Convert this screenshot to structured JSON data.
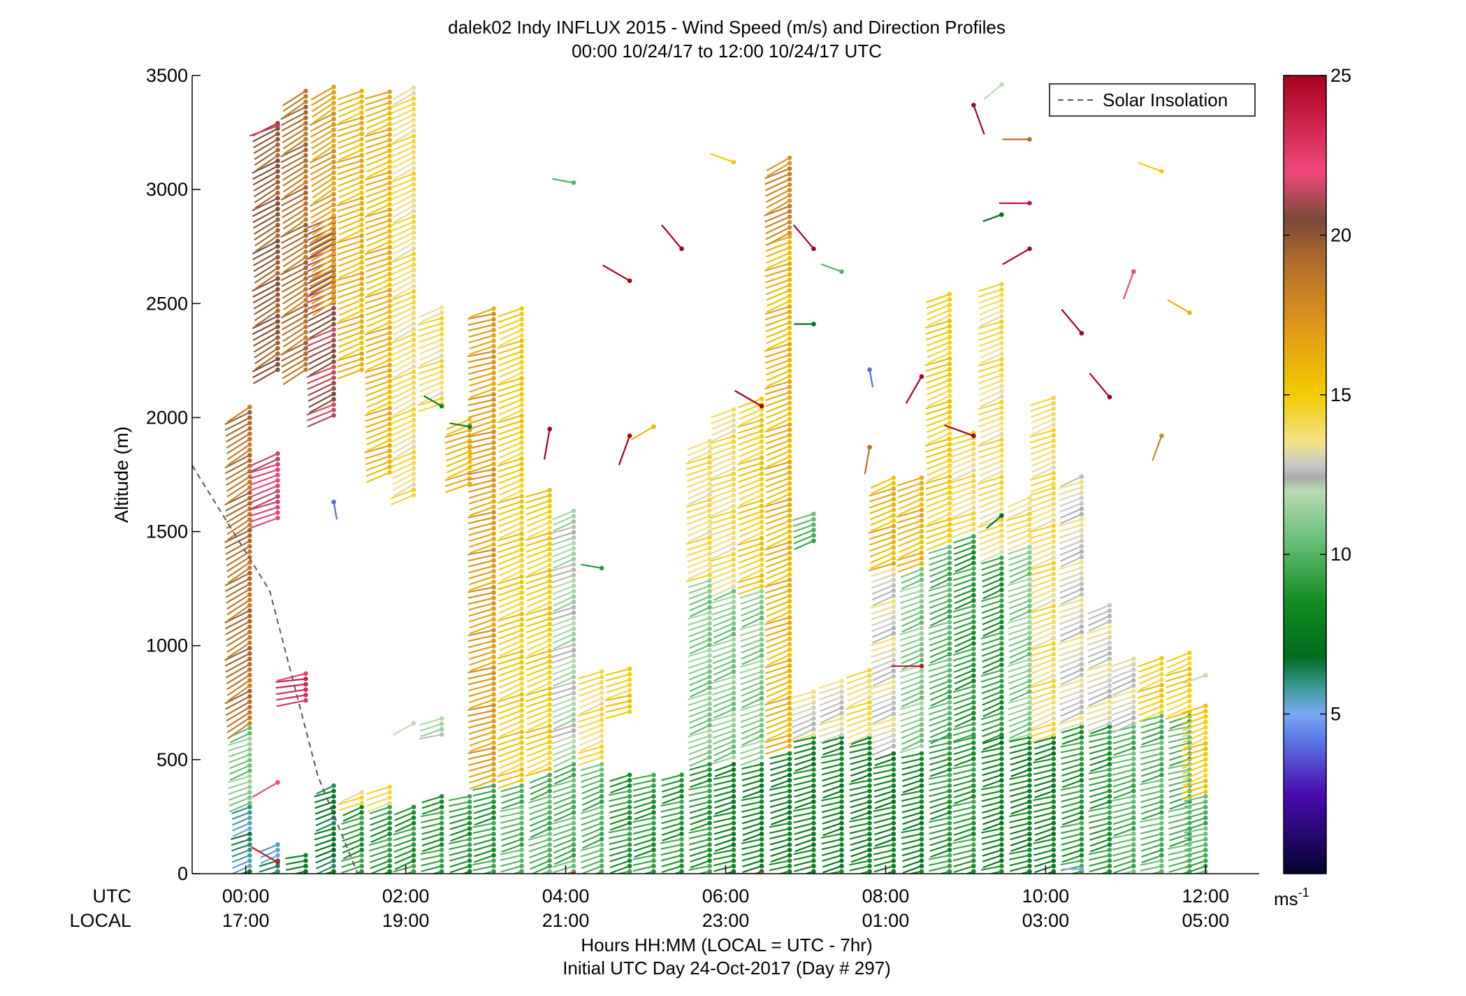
{
  "chart_data": {
    "type": "scatter",
    "subtype": "wind-barb-profile",
    "title_line1": "dalek02 Indy INFLUX 2015 - Wind Speed (m/s) and Direction Profiles",
    "title_line2": "00:00 10/24/17 to 12:00 10/24/17  UTC",
    "ylabel": "Altitude (m)",
    "xlabel_line1": "Hours HH:MM  (LOCAL = UTC - 7hr)",
    "xlabel_line2": "Initial UTC Day 24-Oct-2017 (Day # 297)",
    "utc_row_label": "UTC",
    "local_row_label": "LOCAL",
    "xlim_hours": [
      -0.67,
      12.67
    ],
    "ylim": [
      0,
      3500
    ],
    "y_ticks": [
      0,
      500,
      1000,
      1500,
      2000,
      2500,
      3000,
      3500
    ],
    "x_ticks": [
      {
        "hour": 0,
        "utc": "00:00",
        "local": "17:00"
      },
      {
        "hour": 2,
        "utc": "02:00",
        "local": "19:00"
      },
      {
        "hour": 4,
        "utc": "04:00",
        "local": "21:00"
      },
      {
        "hour": 6,
        "utc": "06:00",
        "local": "23:00"
      },
      {
        "hour": 8,
        "utc": "08:00",
        "local": "01:00"
      },
      {
        "hour": 10,
        "utc": "10:00",
        "local": "03:00"
      },
      {
        "hour": 12,
        "utc": "12:00",
        "local": "05:00"
      }
    ],
    "legend": {
      "label": "Solar Insolation",
      "position": "top-right",
      "line_color": "#555555",
      "dash": true
    },
    "solar_insolation_line": {
      "x_hours": [
        -0.67,
        0.3,
        0.9,
        1.4
      ],
      "y": [
        1790,
        1240,
        430,
        0
      ]
    },
    "colorbar": {
      "range": [
        0,
        25
      ],
      "ticks": [
        5,
        10,
        15,
        20,
        25
      ],
      "unit_base": "ms",
      "unit_exp": "-1",
      "stops": [
        {
          "v": 0,
          "c": "#05052e"
        },
        {
          "v": 2.5,
          "c": "#4a0ab0"
        },
        {
          "v": 4.2,
          "c": "#5a78e6"
        },
        {
          "v": 5.0,
          "c": "#7aa9f2"
        },
        {
          "v": 5.8,
          "c": "#3e9c9c"
        },
        {
          "v": 6.8,
          "c": "#006b1e"
        },
        {
          "v": 8.5,
          "c": "#118c22"
        },
        {
          "v": 10.5,
          "c": "#6cc07a"
        },
        {
          "v": 12.0,
          "c": "#b9dcb4"
        },
        {
          "v": 12.4,
          "c": "#aaaaaa"
        },
        {
          "v": 12.8,
          "c": "#c8c8c8"
        },
        {
          "v": 13.5,
          "c": "#f2e28a"
        },
        {
          "v": 15.0,
          "c": "#f2cc00"
        },
        {
          "v": 17.0,
          "c": "#e39a17"
        },
        {
          "v": 19.0,
          "c": "#b5702a"
        },
        {
          "v": 20.5,
          "c": "#7a4a38"
        },
        {
          "v": 22.0,
          "c": "#f0487a"
        },
        {
          "v": 25.0,
          "c": "#a8001c"
        }
      ]
    },
    "series_columns": [
      {
        "t": 0.05,
        "z": [
          [
            0,
            300,
            6,
            250
          ],
          [
            300,
            650,
            11,
            250
          ],
          [
            650,
            2050,
            19,
            240
          ]
        ]
      },
      {
        "t": 0.4,
        "z": [
          [
            0,
            150,
            6,
            250
          ],
          [
            1550,
            1850,
            22,
            250
          ],
          [
            2200,
            3300,
            20,
            240
          ]
        ]
      },
      {
        "t": 0.75,
        "z": [
          [
            0,
            100,
            8,
            260
          ],
          [
            750,
            900,
            23,
            260
          ],
          [
            2200,
            3450,
            19,
            240
          ]
        ]
      },
      {
        "t": 1.1,
        "z": [
          [
            0,
            400,
            7,
            250
          ],
          [
            2000,
            2900,
            21,
            245
          ],
          [
            2500,
            3450,
            17,
            240
          ]
        ]
      },
      {
        "t": 1.45,
        "z": [
          [
            0,
            300,
            9,
            250
          ],
          [
            300,
            380,
            14,
            250
          ],
          [
            2200,
            3450,
            16,
            250
          ]
        ]
      },
      {
        "t": 1.8,
        "z": [
          [
            0,
            300,
            9,
            250
          ],
          [
            300,
            400,
            14,
            250
          ],
          [
            1750,
            3450,
            16,
            250
          ]
        ]
      },
      {
        "t": 2.1,
        "z": [
          [
            0,
            300,
            9,
            250
          ],
          [
            1650,
            3450,
            14,
            245
          ]
        ]
      },
      {
        "t": 2.45,
        "z": [
          [
            0,
            350,
            9,
            255
          ],
          [
            600,
            700,
            12,
            255
          ],
          [
            2050,
            2500,
            14,
            250
          ]
        ]
      },
      {
        "t": 2.8,
        "z": [
          [
            0,
            350,
            9,
            255
          ],
          [
            1700,
            2000,
            16,
            250
          ]
        ]
      },
      {
        "t": 3.1,
        "z": [
          [
            0,
            400,
            9,
            255
          ],
          [
            400,
            2500,
            17,
            255
          ]
        ]
      },
      {
        "t": 3.45,
        "z": [
          [
            0,
            400,
            10,
            255
          ],
          [
            400,
            2500,
            15,
            250
          ]
        ]
      },
      {
        "t": 3.8,
        "z": [
          [
            0,
            450,
            10,
            250
          ],
          [
            450,
            1700,
            15,
            250
          ]
        ]
      },
      {
        "t": 4.1,
        "z": [
          [
            0,
            500,
            10,
            250
          ],
          [
            500,
            1600,
            12,
            250
          ]
        ]
      },
      {
        "t": 4.45,
        "z": [
          [
            0,
            500,
            10,
            250
          ],
          [
            500,
            900,
            14,
            250
          ]
        ]
      },
      {
        "t": 4.8,
        "z": [
          [
            0,
            450,
            9,
            255
          ],
          [
            700,
            900,
            15,
            255
          ]
        ]
      },
      {
        "t": 5.1,
        "z": [
          [
            0,
            450,
            9,
            255
          ]
        ]
      },
      {
        "t": 5.45,
        "z": [
          [
            0,
            450,
            9,
            255
          ]
        ]
      },
      {
        "t": 5.8,
        "z": [
          [
            0,
            500,
            9,
            255
          ],
          [
            500,
            1300,
            11,
            250
          ],
          [
            1300,
            1900,
            14,
            250
          ]
        ]
      },
      {
        "t": 6.1,
        "z": [
          [
            0,
            500,
            8,
            255
          ],
          [
            500,
            1250,
            11,
            250
          ],
          [
            1250,
            2050,
            14,
            250
          ]
        ]
      },
      {
        "t": 6.45,
        "z": [
          [
            0,
            500,
            8,
            255
          ],
          [
            500,
            1250,
            11,
            250
          ],
          [
            1250,
            2100,
            15,
            250
          ]
        ]
      },
      {
        "t": 6.8,
        "z": [
          [
            0,
            550,
            8,
            255
          ],
          [
            550,
            2800,
            16,
            250
          ],
          [
            2800,
            3150,
            18,
            245
          ]
        ]
      },
      {
        "t": 7.1,
        "z": [
          [
            0,
            600,
            8,
            255
          ],
          [
            600,
            800,
            13,
            250
          ],
          [
            1450,
            1600,
            10,
            250
          ]
        ]
      },
      {
        "t": 7.45,
        "z": [
          [
            0,
            600,
            8,
            255
          ],
          [
            600,
            850,
            13,
            250
          ]
        ]
      },
      {
        "t": 7.8,
        "z": [
          [
            0,
            600,
            8,
            255
          ],
          [
            600,
            900,
            14,
            250
          ]
        ]
      },
      {
        "t": 8.1,
        "z": [
          [
            0,
            550,
            8,
            255
          ],
          [
            550,
            1350,
            13,
            250
          ],
          [
            1350,
            1750,
            16,
            250
          ]
        ]
      },
      {
        "t": 8.45,
        "z": [
          [
            0,
            550,
            8,
            255
          ],
          [
            550,
            1350,
            11,
            250
          ],
          [
            1350,
            1750,
            16,
            250
          ]
        ]
      },
      {
        "t": 8.8,
        "z": [
          [
            0,
            600,
            9,
            255
          ],
          [
            600,
            1450,
            10,
            250
          ],
          [
            1450,
            2550,
            15,
            250
          ]
        ]
      },
      {
        "t": 9.1,
        "z": [
          [
            0,
            600,
            9,
            255
          ],
          [
            600,
            1500,
            9,
            250
          ],
          [
            1500,
            1950,
            14,
            250
          ]
        ]
      },
      {
        "t": 9.45,
        "z": [
          [
            0,
            600,
            8,
            255
          ],
          [
            600,
            1400,
            9,
            250
          ],
          [
            1400,
            2600,
            14,
            250
          ]
        ]
      },
      {
        "t": 9.8,
        "z": [
          [
            0,
            600,
            8,
            255
          ],
          [
            600,
            1450,
            11,
            250
          ],
          [
            1450,
            1650,
            14,
            250
          ]
        ]
      },
      {
        "t": 10.1,
        "z": [
          [
            0,
            600,
            8,
            255
          ],
          [
            600,
            1700,
            14,
            250
          ],
          [
            1700,
            2100,
            14,
            250
          ]
        ]
      },
      {
        "t": 10.45,
        "z": [
          [
            0,
            650,
            9,
            255
          ],
          [
            650,
            1750,
            13,
            250
          ]
        ]
      },
      {
        "t": 10.8,
        "z": [
          [
            0,
            650,
            9,
            255
          ],
          [
            650,
            1200,
            13,
            250
          ]
        ]
      },
      {
        "t": 11.1,
        "z": [
          [
            0,
            650,
            10,
            255
          ],
          [
            650,
            950,
            13,
            250
          ]
        ]
      },
      {
        "t": 11.45,
        "z": [
          [
            0,
            700,
            10,
            255
          ],
          [
            700,
            950,
            15,
            250
          ]
        ]
      },
      {
        "t": 11.8,
        "z": [
          [
            0,
            700,
            10,
            255
          ],
          [
            700,
            980,
            15,
            250
          ]
        ]
      },
      {
        "t": 12.0,
        "z": [
          [
            0,
            350,
            10,
            255
          ],
          [
            350,
            750,
            15,
            250
          ]
        ]
      }
    ],
    "isolated_barbs": [
      {
        "t": 0.4,
        "z": 3280,
        "s": 23,
        "d": 250
      },
      {
        "t": 0.4,
        "z": 400,
        "s": 22,
        "d": 240
      },
      {
        "t": 0.4,
        "z": 50,
        "s": 24,
        "d": 300
      },
      {
        "t": 1.1,
        "z": 1630,
        "s": 4,
        "d": 170
      },
      {
        "t": 2.1,
        "z": 660,
        "s": 13,
        "d": 240
      },
      {
        "t": 2.45,
        "z": 2050,
        "s": 8,
        "d": 300
      },
      {
        "t": 2.8,
        "z": 1960,
        "s": 8,
        "d": 280
      },
      {
        "t": 3.8,
        "z": 1950,
        "s": 25,
        "d": 190
      },
      {
        "t": 4.1,
        "z": 3030,
        "s": 10,
        "d": 280
      },
      {
        "t": 4.45,
        "z": 1340,
        "s": 9,
        "d": 280
      },
      {
        "t": 4.8,
        "z": 2600,
        "s": 25,
        "d": 300
      },
      {
        "t": 4.8,
        "z": 1920,
        "s": 25,
        "d": 200
      },
      {
        "t": 5.1,
        "z": 1960,
        "s": 16,
        "d": 240
      },
      {
        "t": 5.45,
        "z": 2740,
        "s": 25,
        "d": 320
      },
      {
        "t": 6.1,
        "z": 3120,
        "s": 15,
        "d": 290
      },
      {
        "t": 6.45,
        "z": 2050,
        "s": 25,
        "d": 300
      },
      {
        "t": 7.1,
        "z": 2740,
        "s": 25,
        "d": 320
      },
      {
        "t": 7.45,
        "z": 2640,
        "s": 10,
        "d": 290
      },
      {
        "t": 7.1,
        "z": 2410,
        "s": 7,
        "d": 270
      },
      {
        "t": 7.8,
        "z": 2210,
        "s": 4,
        "d": 170
      },
      {
        "t": 7.8,
        "z": 1870,
        "s": 19,
        "d": 190
      },
      {
        "t": 8.45,
        "z": 2180,
        "s": 25,
        "d": 210
      },
      {
        "t": 8.45,
        "z": 910,
        "s": 24,
        "d": 270
      },
      {
        "t": 9.1,
        "z": 1920,
        "s": 25,
        "d": 290
      },
      {
        "t": 9.1,
        "z": 3370,
        "s": 25,
        "d": 160
      },
      {
        "t": 9.45,
        "z": 3460,
        "s": 12,
        "d": 230
      },
      {
        "t": 9.45,
        "z": 2890,
        "s": 7,
        "d": 250
      },
      {
        "t": 9.45,
        "z": 1570,
        "s": 7,
        "d": 230
      },
      {
        "t": 9.8,
        "z": 3220,
        "s": 19,
        "d": 270
      },
      {
        "t": 9.8,
        "z": 2940,
        "s": 24,
        "d": 270
      },
      {
        "t": 9.8,
        "z": 2740,
        "s": 25,
        "d": 240
      },
      {
        "t": 10.45,
        "z": 2370,
        "s": 25,
        "d": 320
      },
      {
        "t": 10.8,
        "z": 2090,
        "s": 25,
        "d": 320
      },
      {
        "t": 11.1,
        "z": 2640,
        "s": 22,
        "d": 200
      },
      {
        "t": 11.45,
        "z": 3080,
        "s": 15,
        "d": 290
      },
      {
        "t": 11.8,
        "z": 2460,
        "s": 16,
        "d": 300
      },
      {
        "t": 11.45,
        "z": 1920,
        "s": 18,
        "d": 200
      },
      {
        "t": 12.0,
        "z": 870,
        "s": 13,
        "d": 250
      },
      {
        "t": 10.45,
        "z": 20,
        "s": 5,
        "d": 270
      },
      {
        "t": 6.45,
        "z": 0,
        "s": 23,
        "d": 270
      },
      {
        "t": 4.1,
        "z": 0,
        "s": 24,
        "d": 270
      }
    ],
    "colors": {
      "axis": "#000000",
      "background": "#ffffff",
      "legend_border": "#000000"
    }
  }
}
